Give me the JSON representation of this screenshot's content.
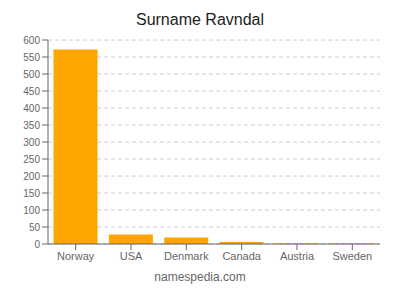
{
  "chart_data": {
    "type": "bar",
    "title": "Surname Ravndal",
    "categories": [
      "Norway",
      "USA",
      "Denmark",
      "Canada",
      "Austria",
      "Sweden"
    ],
    "values": [
      572,
      28,
      19,
      6,
      2,
      2
    ],
    "color": "#FFA500",
    "ylim": [
      0,
      600
    ],
    "yticks": [
      0,
      50,
      100,
      150,
      200,
      250,
      300,
      350,
      400,
      450,
      500,
      550,
      600
    ],
    "grid": true,
    "annotations": [
      "namespedia.com"
    ]
  }
}
